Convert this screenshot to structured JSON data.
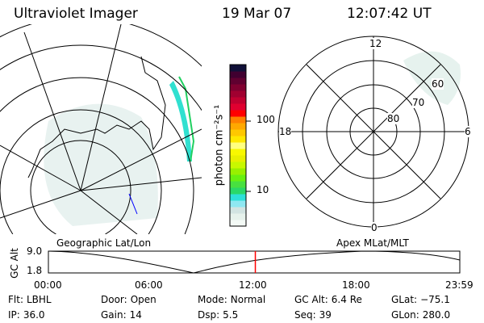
{
  "header": {
    "instrument": "Ultraviolet Imager",
    "date": "19 Mar 07",
    "time": "12:07:42 UT"
  },
  "colorbar": {
    "unit_label": "photon cm⁻²s⁻¹",
    "ticks": [
      "100",
      "10"
    ],
    "colors": [
      "#f4faf6",
      "#e6f2ec",
      "#d2e4e2",
      "#8fe8f2",
      "#2ee0d8",
      "#2ad868",
      "#48e040",
      "#68f010",
      "#98f000",
      "#c8f800",
      "#e8f000",
      "#f8f800",
      "#ffff80",
      "#ffe800",
      "#ffc800",
      "#ffa800",
      "#ff8000",
      "#ff0000",
      "#e00030",
      "#c00030",
      "#a00030",
      "#800030",
      "#600030",
      "#400030",
      "#101038"
    ]
  },
  "polar": {
    "labels": [
      "12",
      "0",
      "18",
      "6",
      "80",
      "70",
      "60"
    ]
  },
  "plot": {
    "left_title": "Geographic Lat/Lon",
    "right_title": "Apex MLat/MLT",
    "ylabel": "GC Alt",
    "yticks": [
      "9.0",
      "1.8"
    ],
    "xticks": [
      "00:00",
      "06:00",
      "12:00",
      "18:00",
      "23:59"
    ],
    "marker_color": "#ff0000",
    "current_time_fraction": 0.503
  },
  "info": [
    {
      "label": "Flt:",
      "value": "LBHL"
    },
    {
      "label": "IP:",
      "value": "36.0"
    },
    {
      "label": "Door:",
      "value": "Open"
    },
    {
      "label": "Gain:",
      "value": "14"
    },
    {
      "label": "Mode:",
      "value": "Normal"
    },
    {
      "label": "Dsp:",
      "value": "5.5"
    },
    {
      "label": "GC Alt:",
      "value": "6.4 Re"
    },
    {
      "label": "Seq:",
      "value": "39"
    },
    {
      "label": "GLat:",
      "value": "−75.1"
    },
    {
      "label": "GLon:",
      "value": "280.0"
    }
  ]
}
